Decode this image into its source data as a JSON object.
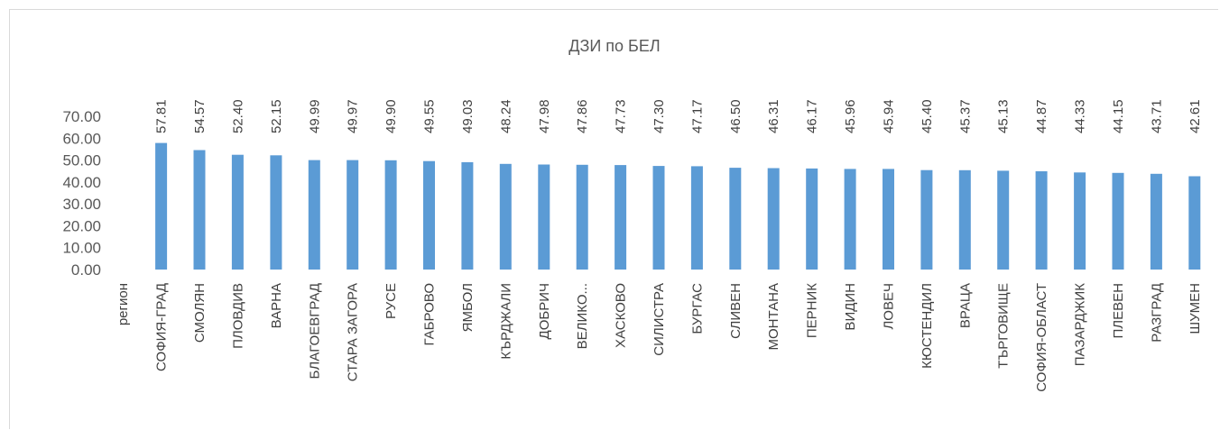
{
  "chart_data": {
    "type": "bar",
    "title": "ДЗИ по БЕЛ",
    "categories": [
      "регион",
      "СОФИЯ-ГРАД",
      "СМОЛЯН",
      "ПЛОВДИВ",
      "ВАРНА",
      "БЛАГОЕВГРАД",
      "СТАРА ЗАГОРА",
      "РУСЕ",
      "ГАБРОВО",
      "ЯМБОЛ",
      "КЪРДЖАЛИ",
      "ДОБРИЧ",
      "ВЕЛИКО...",
      "ХАСКОВО",
      "СИЛИСТРА",
      "БУРГАС",
      "СЛИВЕН",
      "МОНТАНА",
      "ПЕРНИК",
      "ВИДИН",
      "ЛОВЕЧ",
      "КЮСТЕНДИЛ",
      "ВРАЦА",
      "ТЪРГОВИЩЕ",
      "СОФИЯ-ОБЛАСТ",
      "ПАЗАРДЖИК",
      "ПЛЕВЕН",
      "РАЗГРАД",
      "ШУМЕН"
    ],
    "values": [
      null,
      57.81,
      54.57,
      52.4,
      52.15,
      49.99,
      49.97,
      49.9,
      49.55,
      49.03,
      48.24,
      47.98,
      47.86,
      47.73,
      47.3,
      47.17,
      46.5,
      46.31,
      46.17,
      45.96,
      45.94,
      45.4,
      45.37,
      45.13,
      44.87,
      44.33,
      44.15,
      43.71,
      42.61
    ],
    "value_labels": [
      "",
      "57.81",
      "54.57",
      "52.40",
      "52.15",
      "49.99",
      "49.97",
      "49.90",
      "49.55",
      "49.03",
      "48.24",
      "47.98",
      "47.86",
      "47.73",
      "47.30",
      "47.17",
      "46.50",
      "46.31",
      "46.17",
      "45.96",
      "45.94",
      "45.40",
      "45.37",
      "45.13",
      "44.87",
      "44.33",
      "44.15",
      "43.71",
      "42.61"
    ],
    "yticks": [
      "0.00",
      "10.00",
      "20.00",
      "30.00",
      "40.00",
      "50.00",
      "60.00",
      "70.00"
    ],
    "ylim": [
      0,
      70
    ],
    "bar_color": "#5b9bd5",
    "grid": false,
    "legend": "none"
  }
}
